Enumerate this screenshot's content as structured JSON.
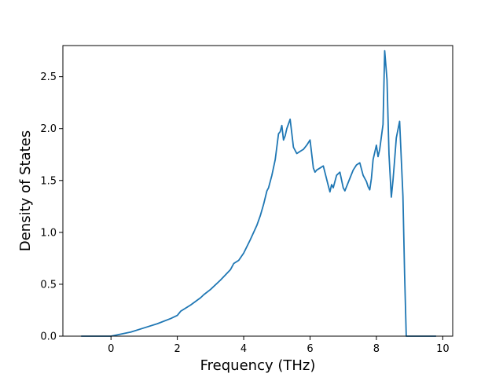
{
  "chart_data": {
    "type": "line",
    "xlabel": "Frequency (THz)",
    "ylabel": "Density of States",
    "xlim": [
      -1.45,
      10.3
    ],
    "ylim": [
      0.0,
      2.8
    ],
    "xticks": [
      0,
      2,
      4,
      6,
      8,
      10
    ],
    "yticks": [
      0.0,
      0.5,
      1.0,
      1.5,
      2.0,
      2.5
    ],
    "xtick_labels": [
      "0",
      "2",
      "4",
      "6",
      "8",
      "10"
    ],
    "ytick_labels": [
      "0.0",
      "0.5",
      "1.0",
      "1.5",
      "2.0",
      "2.5"
    ],
    "grid": false,
    "legend": "none",
    "series": [
      {
        "color": "#1f77b4",
        "x": [
          -0.9,
          0.0,
          0.3,
          0.6,
          1.0,
          1.4,
          1.8,
          2.0,
          2.1,
          2.4,
          2.7,
          2.8,
          3.0,
          3.3,
          3.6,
          3.7,
          3.85,
          4.0,
          4.2,
          4.4,
          4.5,
          4.6,
          4.7,
          4.75,
          4.85,
          4.95,
          5.05,
          5.1,
          5.15,
          5.2,
          5.25,
          5.3,
          5.4,
          5.5,
          5.6,
          5.7,
          5.8,
          5.9,
          6.0,
          6.1,
          6.15,
          6.2,
          6.3,
          6.4,
          6.55,
          6.6,
          6.65,
          6.7,
          6.8,
          6.9,
          7.0,
          7.05,
          7.1,
          7.2,
          7.3,
          7.4,
          7.5,
          7.6,
          7.65,
          7.7,
          7.75,
          7.8,
          7.85,
          7.9,
          8.0,
          8.05,
          8.1,
          8.2,
          8.25,
          8.32,
          8.38,
          8.45,
          8.5,
          8.55,
          8.6,
          8.7,
          8.8,
          8.85,
          8.9,
          9.0,
          9.8
        ],
        "y": [
          0.0,
          0.0,
          0.02,
          0.04,
          0.08,
          0.12,
          0.17,
          0.2,
          0.24,
          0.3,
          0.37,
          0.4,
          0.45,
          0.54,
          0.64,
          0.7,
          0.73,
          0.8,
          0.93,
          1.07,
          1.16,
          1.27,
          1.4,
          1.43,
          1.55,
          1.7,
          1.95,
          1.97,
          2.03,
          1.89,
          1.93,
          2.0,
          2.09,
          1.82,
          1.76,
          1.78,
          1.8,
          1.84,
          1.89,
          1.62,
          1.58,
          1.6,
          1.62,
          1.64,
          1.45,
          1.39,
          1.46,
          1.43,
          1.55,
          1.58,
          1.43,
          1.4,
          1.44,
          1.52,
          1.6,
          1.65,
          1.67,
          1.55,
          1.52,
          1.49,
          1.44,
          1.41,
          1.52,
          1.7,
          1.84,
          1.73,
          1.8,
          2.04,
          2.75,
          2.47,
          1.75,
          1.34,
          1.5,
          1.7,
          1.91,
          2.07,
          1.35,
          0.6,
          0.0,
          0.0,
          0.0
        ]
      }
    ]
  }
}
